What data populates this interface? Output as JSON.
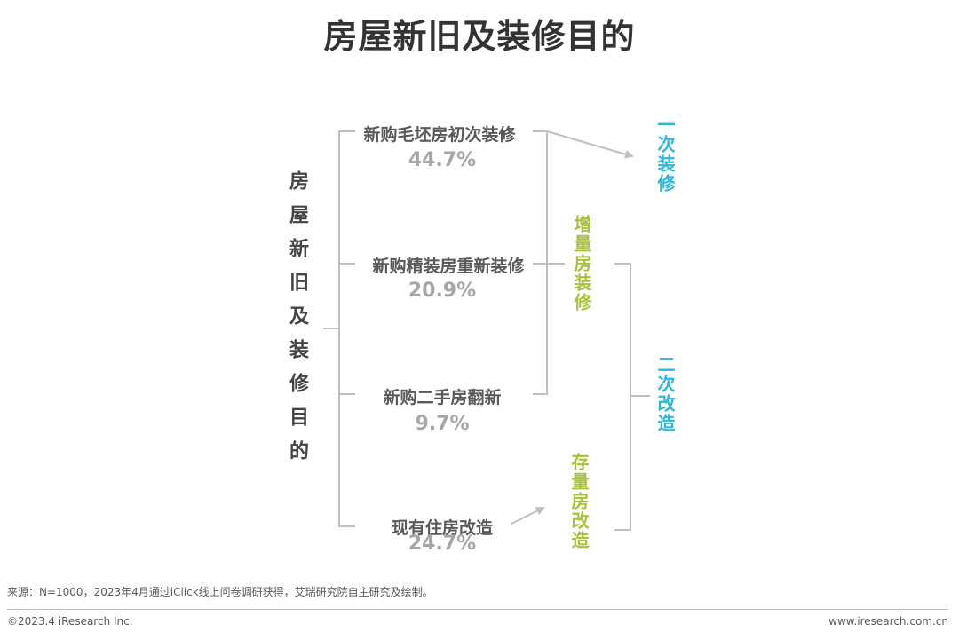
{
  "title": "房屋新旧及装修目的",
  "root_label": "房屋新旧及装修目的",
  "items": [
    {
      "label": "新购毛坯房初次装修",
      "pct": "44.7%"
    },
    {
      "label": "新购精装房重新装修",
      "pct": "20.9%"
    },
    {
      "label": "新购二手房翻新",
      "pct": "9.7%"
    },
    {
      "label": "现有住房改造",
      "pct": "24.7%"
    }
  ],
  "groups": {
    "incremental": "增量房装修",
    "existing": "存量房改造"
  },
  "outcomes": {
    "first": "一次装修",
    "second": "二次改造"
  },
  "colors": {
    "title": "#333333",
    "label": "#595959",
    "percent": "#a6a6a6",
    "green": "#a5c23a",
    "cyan": "#29b8de",
    "connector": "#bfbfbf"
  },
  "footer": {
    "source": "来源：N=1000，2023年4月通过iClick线上问卷调研获得，艾瑞研究院自主研究及绘制。",
    "copyright": "©2023.4 iResearch Inc.",
    "website": "www.iresearch.com.cn"
  }
}
